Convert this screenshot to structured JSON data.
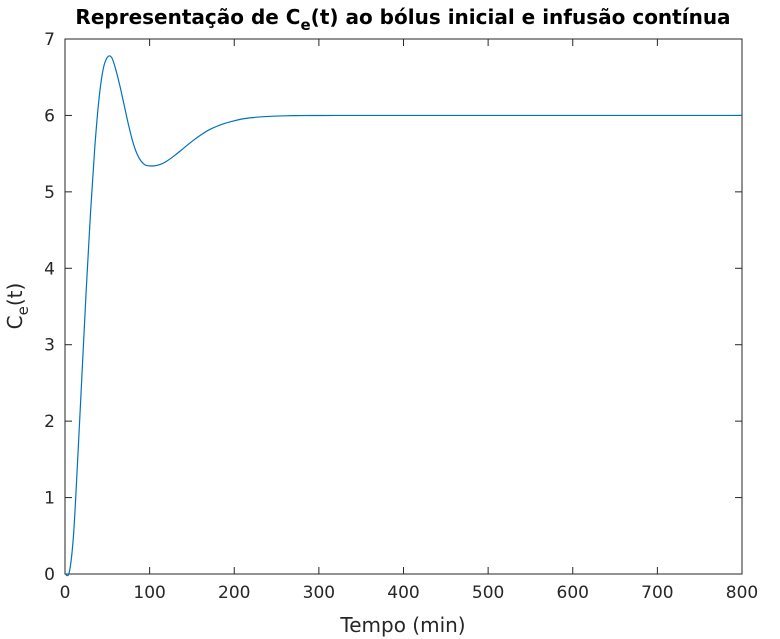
{
  "chart_data": {
    "type": "line",
    "title": {
      "prefix": "Representação de C",
      "subscript": "e",
      "suffix": "(t) ao bólus inicial e infusão contínua"
    },
    "xlabel": "Tempo (min)",
    "ylabel": {
      "prefix": "C",
      "subscript": "e",
      "suffix": "(t)"
    },
    "xlim": [
      0,
      800
    ],
    "ylim": [
      0,
      7
    ],
    "xticks": [
      0,
      100,
      200,
      300,
      400,
      500,
      600,
      700,
      800
    ],
    "yticks": [
      0,
      1,
      2,
      3,
      4,
      5,
      6,
      7
    ],
    "grid": false,
    "series": [
      {
        "color": "#0072BD",
        "x": [
          0,
          5,
          10,
          15,
          20,
          25,
          30,
          35,
          40,
          45,
          50,
          55,
          60,
          65,
          70,
          75,
          80,
          85,
          90,
          95,
          100,
          105,
          110,
          115,
          120,
          130,
          140,
          150,
          160,
          170,
          180,
          190,
          200,
          210,
          220,
          230,
          240,
          250,
          260,
          270,
          280,
          300,
          320,
          340,
          360,
          400,
          450,
          500,
          550,
          600,
          650,
          700,
          750,
          800
        ],
        "y": [
          0,
          0.02,
          0.5,
          1.5,
          2.6,
          3.7,
          4.7,
          5.55,
          6.2,
          6.6,
          6.76,
          6.76,
          6.6,
          6.38,
          6.13,
          5.88,
          5.66,
          5.5,
          5.4,
          5.35,
          5.34,
          5.34,
          5.35,
          5.37,
          5.4,
          5.48,
          5.57,
          5.66,
          5.74,
          5.81,
          5.86,
          5.9,
          5.93,
          5.955,
          5.97,
          5.98,
          5.987,
          5.992,
          5.995,
          5.997,
          5.998,
          5.999,
          6.0,
          6.0,
          6.0,
          6.0,
          6.0,
          6.0,
          6.0,
          6.0,
          6.0,
          6.0,
          6.0,
          6.0
        ]
      }
    ]
  }
}
